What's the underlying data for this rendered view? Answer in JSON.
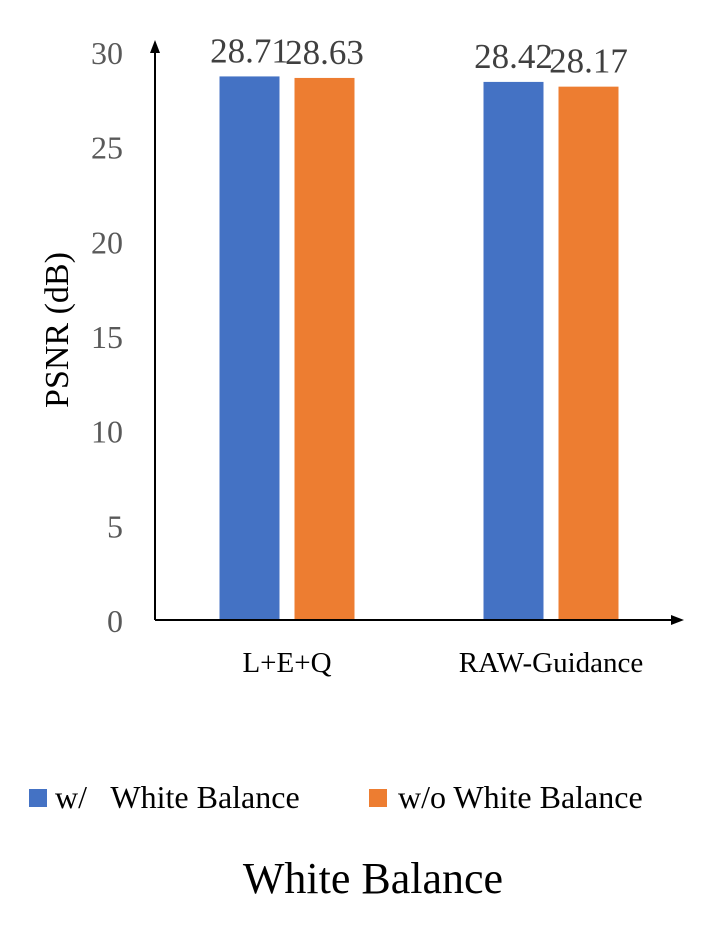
{
  "chart_data": {
    "type": "bar",
    "title": "White Balance",
    "ylabel": "PSNR (dB)",
    "xlabel": "",
    "categories": [
      "L+E+Q",
      "RAW-Guidance"
    ],
    "series": [
      {
        "name": "w/   White Balance",
        "color": "#4472C4",
        "values": [
          28.71,
          28.42
        ],
        "labels": [
          "28.71",
          "28.42"
        ]
      },
      {
        "name": "w/o White Balance",
        "color": "#ED7D31",
        "values": [
          28.63,
          28.17
        ],
        "labels": [
          "28.63",
          "28.17"
        ]
      }
    ],
    "ylim": [
      0,
      30
    ],
    "yticks": [
      0,
      5,
      10,
      15,
      20,
      25,
      30
    ],
    "grid": false,
    "legend": "bottom"
  }
}
